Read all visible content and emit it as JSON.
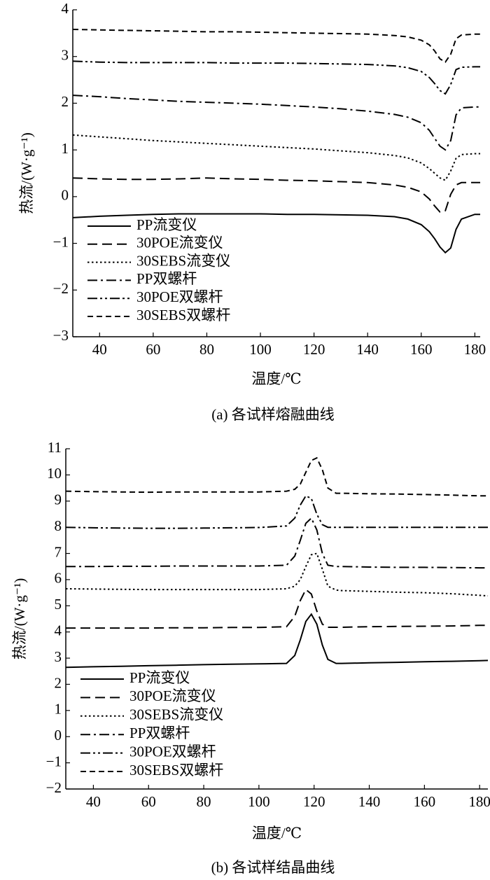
{
  "chart_data": [
    {
      "type": "line",
      "title": "(a) 各试样熔融曲线",
      "x_label": "温度/℃",
      "y_label": "热流/(W·g⁻¹)",
      "x": [
        30,
        40,
        50,
        60,
        70,
        80,
        90,
        100,
        110,
        120,
        130,
        140,
        150,
        155,
        160,
        163,
        165,
        167,
        169,
        171,
        173,
        175,
        180,
        182
      ],
      "xlim": [
        30,
        182
      ],
      "xticks": [
        40,
        60,
        80,
        100,
        120,
        140,
        160,
        180
      ],
      "ylim": [
        -3,
        4
      ],
      "yticks": [
        {
          "value": -3,
          "label": "−3"
        },
        {
          "value": -2,
          "label": "−2"
        },
        {
          "value": -1,
          "label": "−1"
        },
        0,
        1,
        2,
        3,
        4
      ],
      "legend": "lower left",
      "series": [
        {
          "name": "PP流变仪",
          "color": "#000000",
          "dash": "solid",
          "values": [
            -0.45,
            -0.42,
            -0.4,
            -0.38,
            -0.37,
            -0.37,
            -0.37,
            -0.37,
            -0.38,
            -0.38,
            -0.39,
            -0.4,
            -0.43,
            -0.48,
            -0.6,
            -0.75,
            -0.9,
            -1.08,
            -1.2,
            -1.1,
            -0.7,
            -0.48,
            -0.38,
            -0.38
          ]
        },
        {
          "name": "30POE流变仪",
          "color": "#000000",
          "dash": "dashed",
          "values": [
            0.4,
            0.38,
            0.37,
            0.37,
            0.38,
            0.4,
            0.38,
            0.37,
            0.35,
            0.34,
            0.32,
            0.3,
            0.25,
            0.2,
            0.1,
            -0.05,
            -0.2,
            -0.33,
            -0.3,
            0.05,
            0.25,
            0.3,
            0.3,
            0.3
          ]
        },
        {
          "name": "30SEBS流变仪",
          "color": "#000000",
          "dash": "dotted",
          "values": [
            1.32,
            1.28,
            1.24,
            1.2,
            1.17,
            1.14,
            1.11,
            1.08,
            1.05,
            1.02,
            0.98,
            0.94,
            0.88,
            0.83,
            0.72,
            0.6,
            0.5,
            0.4,
            0.35,
            0.55,
            0.82,
            0.9,
            0.92,
            0.92
          ]
        },
        {
          "name": "PP双螺杆",
          "color": "#000000",
          "dash": "dashdot",
          "values": [
            2.17,
            2.14,
            2.1,
            2.07,
            2.04,
            2.02,
            2.0,
            1.98,
            1.95,
            1.92,
            1.88,
            1.83,
            1.76,
            1.7,
            1.58,
            1.42,
            1.25,
            1.08,
            1.0,
            1.2,
            1.75,
            1.9,
            1.92,
            1.92
          ]
        },
        {
          "name": "30POE双螺杆",
          "color": "#000000",
          "dash": "dashdotdot",
          "values": [
            2.9,
            2.88,
            2.87,
            2.87,
            2.87,
            2.87,
            2.86,
            2.86,
            2.86,
            2.85,
            2.84,
            2.83,
            2.8,
            2.76,
            2.68,
            2.55,
            2.42,
            2.27,
            2.2,
            2.4,
            2.72,
            2.77,
            2.78,
            2.78
          ]
        },
        {
          "name": "30SEBS双螺杆",
          "color": "#000000",
          "dash": "shortdash",
          "values": [
            3.58,
            3.57,
            3.56,
            3.55,
            3.54,
            3.53,
            3.53,
            3.52,
            3.51,
            3.5,
            3.49,
            3.48,
            3.45,
            3.42,
            3.35,
            3.25,
            3.12,
            2.95,
            2.88,
            3.05,
            3.38,
            3.46,
            3.48,
            3.48
          ]
        }
      ]
    },
    {
      "type": "line",
      "title": "(b) 各试样结晶曲线",
      "x_label": "温度/℃",
      "y_label": "热流/(W·g⁻¹)",
      "x": [
        30,
        40,
        50,
        60,
        70,
        80,
        90,
        100,
        110,
        113,
        115,
        117,
        119,
        121,
        123,
        125,
        128,
        130,
        140,
        150,
        160,
        170,
        180,
        183
      ],
      "xlim": [
        30,
        183
      ],
      "xticks": [
        40,
        60,
        80,
        100,
        120,
        140,
        160,
        180
      ],
      "ylim": [
        -2,
        11
      ],
      "yticks": [
        {
          "value": -2,
          "label": "−2"
        },
        {
          "value": -1,
          "label": "−1"
        },
        0,
        1,
        2,
        3,
        4,
        5,
        6,
        7,
        8,
        9,
        10,
        11
      ],
      "legend": "lower left",
      "series": [
        {
          "name": "PP流变仪",
          "color": "#000000",
          "dash": "solid",
          "values": [
            2.65,
            2.67,
            2.69,
            2.71,
            2.73,
            2.75,
            2.77,
            2.78,
            2.8,
            3.1,
            3.7,
            4.4,
            4.68,
            4.3,
            3.5,
            2.95,
            2.8,
            2.8,
            2.82,
            2.84,
            2.86,
            2.88,
            2.9,
            2.91
          ]
        },
        {
          "name": "30POE流变仪",
          "color": "#000000",
          "dash": "dashed",
          "values": [
            4.15,
            4.15,
            4.15,
            4.15,
            4.16,
            4.16,
            4.17,
            4.17,
            4.2,
            4.6,
            5.2,
            5.62,
            5.45,
            4.8,
            4.3,
            4.18,
            4.18,
            4.18,
            4.2,
            4.21,
            4.22,
            4.23,
            4.25,
            4.25
          ]
        },
        {
          "name": "30SEBS流变仪",
          "color": "#000000",
          "dash": "dotted",
          "values": [
            5.65,
            5.64,
            5.63,
            5.62,
            5.62,
            5.62,
            5.62,
            5.62,
            5.65,
            5.75,
            6.0,
            6.5,
            6.95,
            7.0,
            6.4,
            5.75,
            5.6,
            5.58,
            5.55,
            5.52,
            5.5,
            5.46,
            5.4,
            5.38
          ]
        },
        {
          "name": "PP双螺杆",
          "color": "#000000",
          "dash": "dashdot",
          "values": [
            6.5,
            6.5,
            6.51,
            6.51,
            6.52,
            6.52,
            6.52,
            6.52,
            6.55,
            6.9,
            7.5,
            8.15,
            8.35,
            7.9,
            7.0,
            6.55,
            6.5,
            6.5,
            6.48,
            6.47,
            6.47,
            6.46,
            6.45,
            6.45
          ]
        },
        {
          "name": "30POE双螺杆",
          "color": "#000000",
          "dash": "dashdotdot",
          "values": [
            8.0,
            7.98,
            7.97,
            7.96,
            7.96,
            7.97,
            7.98,
            7.99,
            8.05,
            8.35,
            8.85,
            9.2,
            9.1,
            8.5,
            8.1,
            8.0,
            8.0,
            8.0,
            8.0,
            8.0,
            8.0,
            8.0,
            8.0,
            8.0
          ]
        },
        {
          "name": "30SEBS双螺杆",
          "color": "#000000",
          "dash": "shortdash",
          "values": [
            9.38,
            9.36,
            9.35,
            9.34,
            9.35,
            9.35,
            9.35,
            9.35,
            9.38,
            9.45,
            9.65,
            10.1,
            10.55,
            10.65,
            10.2,
            9.5,
            9.3,
            9.3,
            9.28,
            9.27,
            9.25,
            9.23,
            9.2,
            9.2
          ]
        }
      ]
    }
  ]
}
